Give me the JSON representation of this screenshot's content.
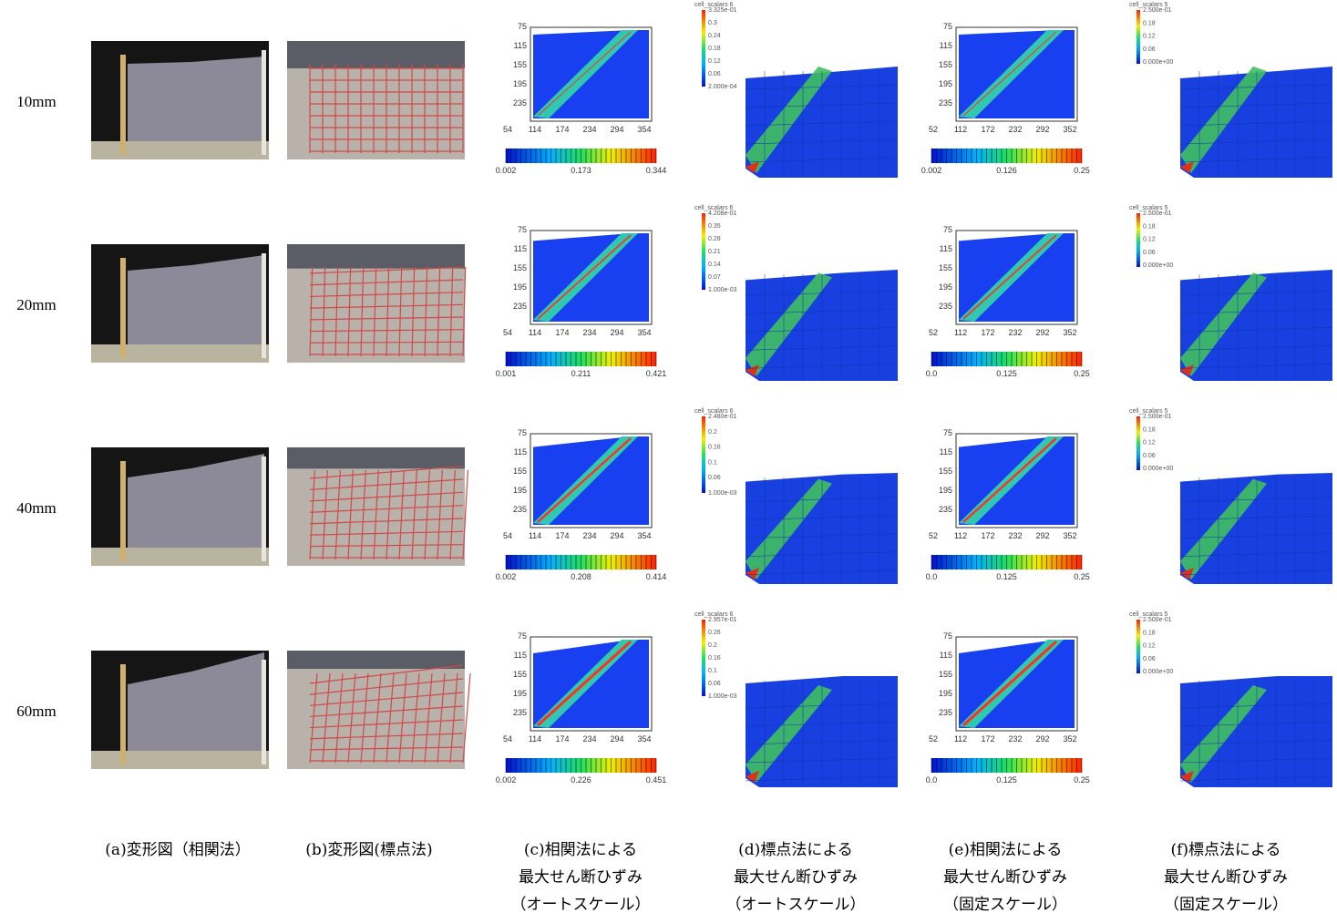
{
  "row_labels": [
    "10mm",
    "20mm",
    "40mm",
    "60mm"
  ],
  "panels": [
    {
      "c": {
        "yticks": [
          "75",
          "115",
          "155",
          "195",
          "235"
        ],
        "xticks": [
          "54",
          "114",
          "174",
          "234",
          "294",
          "354"
        ],
        "colorbar": [
          "0.002",
          "0.173",
          "0.344"
        ]
      },
      "d": {
        "title": "cell_scalars 6",
        "labels": [
          "3.325e-01",
          "0.3",
          "0.24",
          "0.18",
          "0.12",
          "0.06",
          "2.000e-04"
        ]
      },
      "e": {
        "yticks": [
          "75",
          "115",
          "155",
          "195",
          "235"
        ],
        "xticks": [
          "52",
          "112",
          "172",
          "232",
          "292",
          "352"
        ],
        "colorbar": [
          "0.002",
          "0.126",
          "0.25"
        ]
      },
      "f": {
        "title": "cell_scalars 5",
        "labels": [
          "2.500e-01",
          "0.18",
          "0.12",
          "0.06",
          "0.000e+00"
        ]
      }
    },
    {
      "c": {
        "yticks": [
          "75",
          "115",
          "155",
          "195",
          "235"
        ],
        "xticks": [
          "54",
          "114",
          "174",
          "234",
          "294",
          "354"
        ],
        "colorbar": [
          "0.001",
          "0.211",
          "0.421"
        ]
      },
      "d": {
        "title": "cell_scalars 6",
        "labels": [
          "4.208e-01",
          "0.35",
          "0.28",
          "0.21",
          "0.14",
          "0.07",
          "1.000e-03"
        ]
      },
      "e": {
        "yticks": [
          "75",
          "115",
          "155",
          "195",
          "235"
        ],
        "xticks": [
          "52",
          "112",
          "172",
          "232",
          "292",
          "352"
        ],
        "colorbar": [
          "0.0",
          "0.125",
          "0.25"
        ]
      },
      "f": {
        "title": "cell_scalars 5",
        "labels": [
          "2.500e-01",
          "0.18",
          "0.12",
          "0.06",
          "0.000e+00"
        ]
      }
    },
    {
      "c": {
        "yticks": [
          "75",
          "115",
          "155",
          "195",
          "235"
        ],
        "xticks": [
          "54",
          "114",
          "174",
          "234",
          "294",
          "354"
        ],
        "colorbar": [
          "0.002",
          "0.208",
          "0.414"
        ]
      },
      "d": {
        "title": "cell_scalars 6",
        "labels": [
          "2.480e-01",
          "0.2",
          "0.16",
          "0.1",
          "0.06",
          "1.000e-03"
        ]
      },
      "e": {
        "yticks": [
          "75",
          "115",
          "155",
          "195",
          "235"
        ],
        "xticks": [
          "52",
          "112",
          "172",
          "232",
          "292",
          "352"
        ],
        "colorbar": [
          "0.0",
          "0.125",
          "0.25"
        ]
      },
      "f": {
        "title": "cell_scalars 5",
        "labels": [
          "2.500e-01",
          "0.18",
          "0.12",
          "0.06",
          "0.000e+00"
        ]
      }
    },
    {
      "c": {
        "yticks": [
          "75",
          "115",
          "155",
          "195",
          "235"
        ],
        "xticks": [
          "54",
          "114",
          "174",
          "234",
          "294",
          "354"
        ],
        "colorbar": [
          "0.002",
          "0.226",
          "0.451"
        ]
      },
      "d": {
        "title": "cell_scalars 6",
        "labels": [
          "2.957e-01",
          "0.26",
          "0.2",
          "0.16",
          "0.1",
          "0.06",
          "1.000e-03"
        ]
      },
      "e": {
        "yticks": [
          "75",
          "115",
          "155",
          "195",
          "235"
        ],
        "xticks": [
          "52",
          "112",
          "172",
          "232",
          "292",
          "352"
        ],
        "colorbar": [
          "0.0",
          "0.125",
          "0.25"
        ]
      },
      "f": {
        "title": "cell_scalars 5",
        "labels": [
          "2.500e-01",
          "0.18",
          "0.12",
          "0.06",
          "0.000e+00"
        ]
      }
    }
  ],
  "captions": [
    [
      "(a)変形図（相関法）"
    ],
    [
      "(b)変形図(標点法)"
    ],
    [
      "(c)相関法による",
      "最大せん断ひずみ",
      "（オートスケール）"
    ],
    [
      "(d)標点法による",
      "最大せん断ひずみ",
      "（オートスケール）"
    ],
    [
      "(e)相関法による",
      "最大せん断ひずみ",
      "（固定スケール）"
    ],
    [
      "(f)標点法による",
      "最大せん断ひずみ",
      "（固定スケール）"
    ]
  ]
}
